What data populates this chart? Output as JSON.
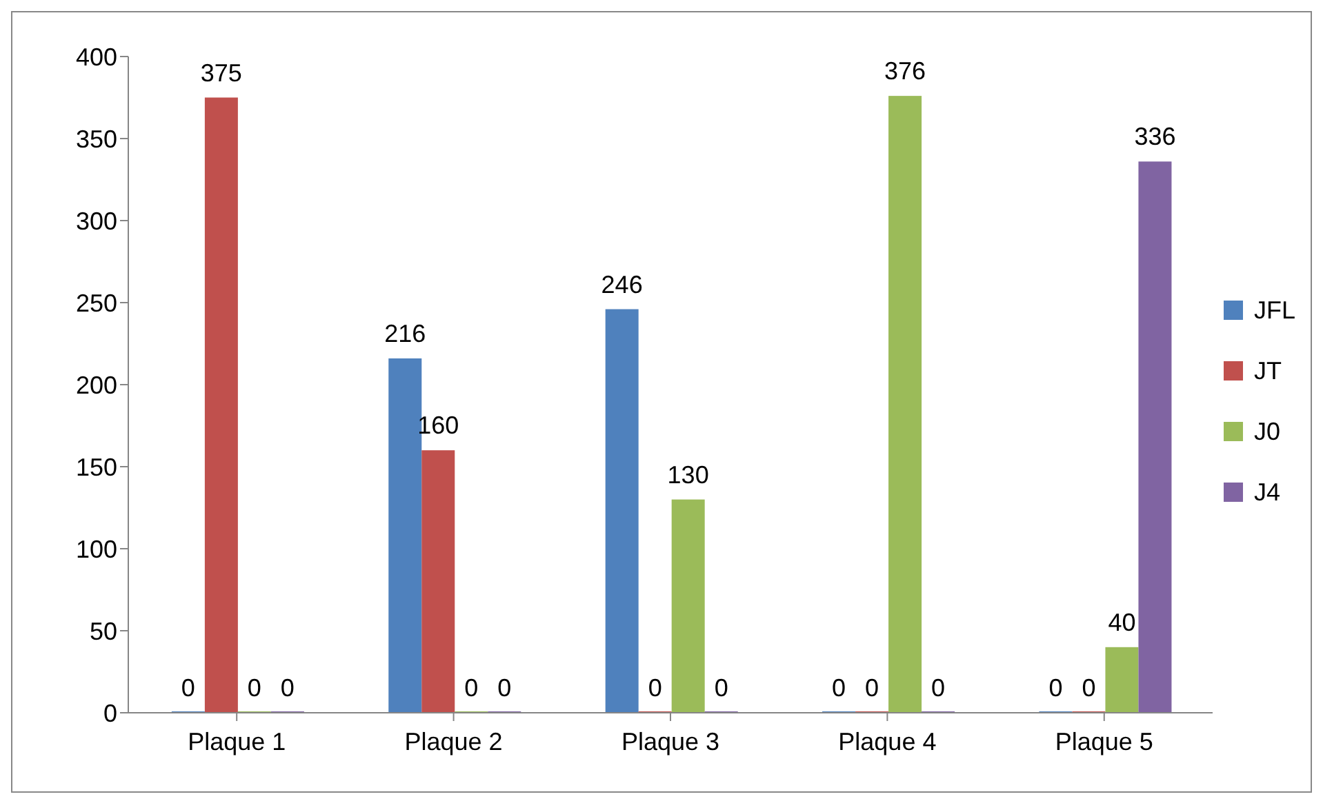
{
  "chart_data": {
    "type": "bar",
    "categories": [
      "Plaque 1",
      "Plaque 2",
      "Plaque 3",
      "Plaque 4",
      "Plaque 5"
    ],
    "series": [
      {
        "name": "JFL",
        "color": "#4f81bd",
        "values": [
          0,
          216,
          246,
          0,
          0
        ]
      },
      {
        "name": "JT",
        "color": "#c0504d",
        "values": [
          375,
          160,
          0,
          0,
          0
        ]
      },
      {
        "name": "J0",
        "color": "#9bbb59",
        "values": [
          0,
          0,
          130,
          376,
          40
        ]
      },
      {
        "name": "J4",
        "color": "#8064a2",
        "values": [
          0,
          0,
          0,
          0,
          336
        ]
      }
    ],
    "ylim": [
      0,
      400
    ],
    "yticks": [
      0,
      50,
      100,
      150,
      200,
      250,
      300,
      350,
      400
    ],
    "grid": false,
    "legend": "right",
    "data_labels": true
  }
}
